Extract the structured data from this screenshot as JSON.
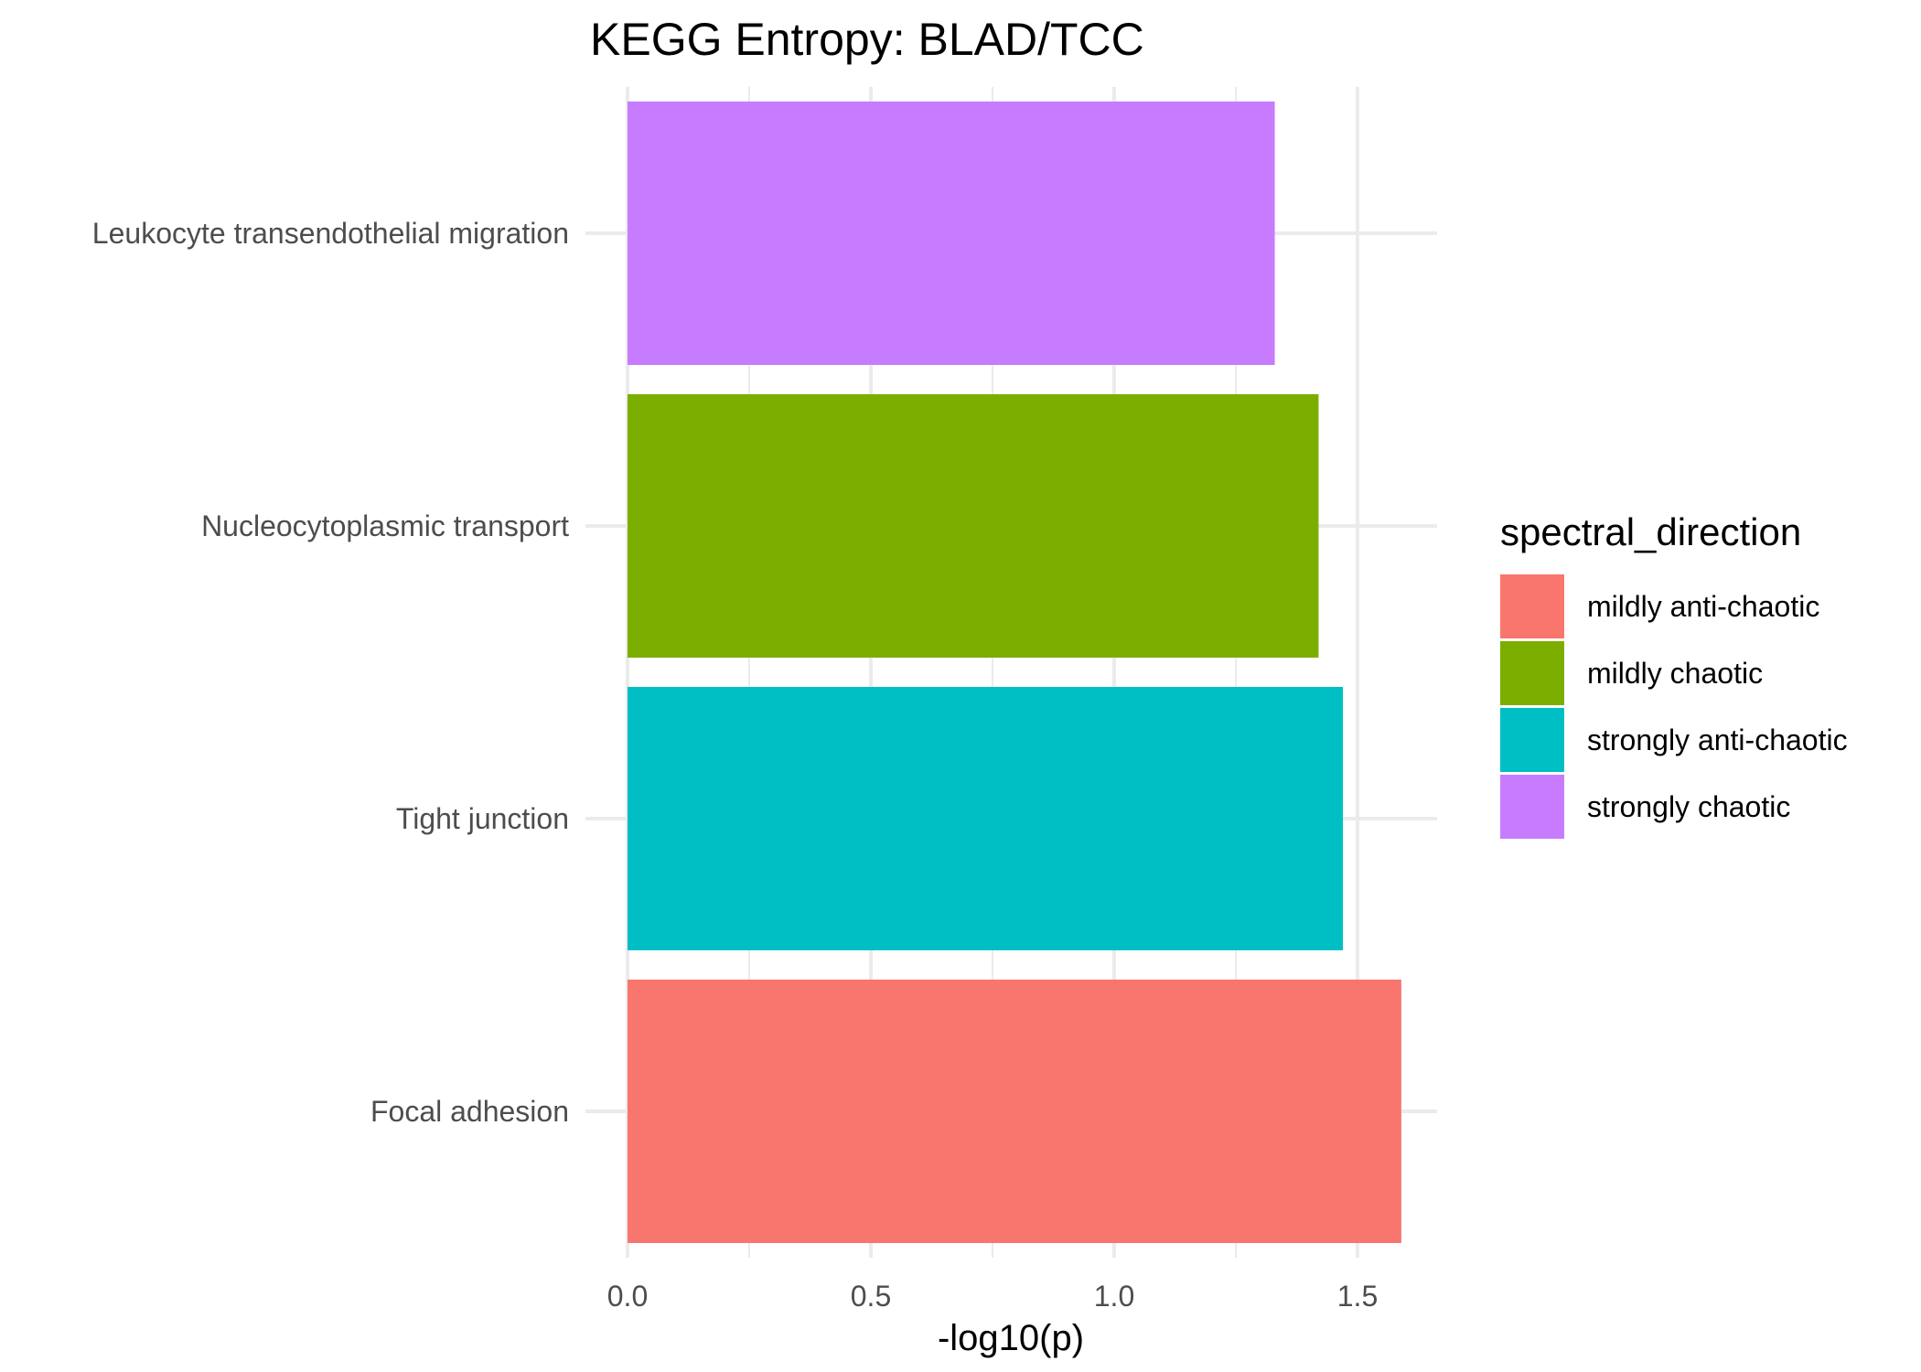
{
  "chart_data": {
    "type": "bar",
    "orientation": "horizontal",
    "title": "KEGG Entropy: BLAD/TCC",
    "xlabel": "-log10(p)",
    "ylabel": "",
    "xlim": [
      0,
      1.66
    ],
    "x_ticks": [
      0.0,
      0.5,
      1.0,
      1.5
    ],
    "x_tick_labels": [
      "0.0",
      "0.5",
      "1.0",
      "1.5"
    ],
    "grid": true,
    "categories": [
      "Leukocyte transendothelial migration",
      "Nucleocytoplasmic transport",
      "Tight junction",
      "Focal adhesion"
    ],
    "values": [
      1.33,
      1.42,
      1.47,
      1.59
    ],
    "bar_groups": [
      "strongly chaotic",
      "mildly chaotic",
      "strongly anti-chaotic",
      "mildly anti-chaotic"
    ],
    "legend": {
      "title": "spectral_direction",
      "position": "right",
      "entries": [
        {
          "label": "mildly anti-chaotic",
          "color": "#F8766D"
        },
        {
          "label": "mildly chaotic",
          "color": "#7CAE00"
        },
        {
          "label": "strongly anti-chaotic",
          "color": "#00BFC4"
        },
        {
          "label": "strongly chaotic",
          "color": "#C77CFF"
        }
      ]
    }
  }
}
